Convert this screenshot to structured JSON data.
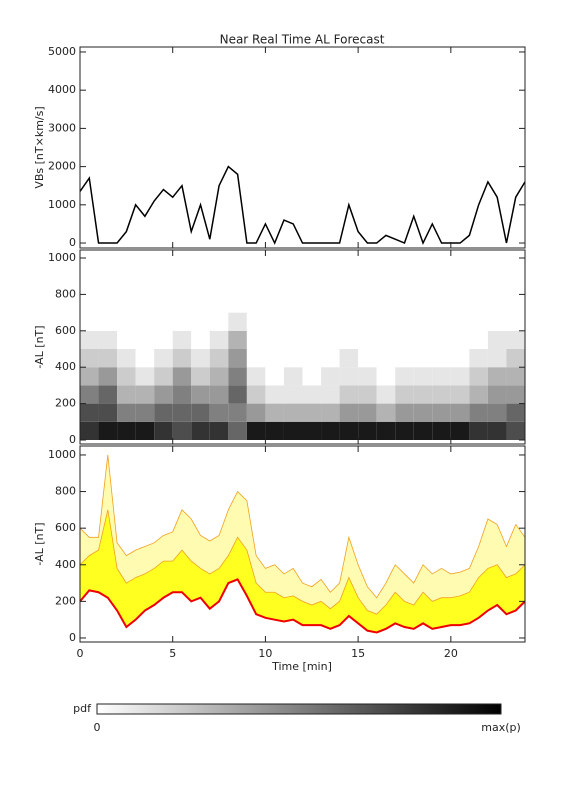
{
  "chart_data": [
    {
      "type": "line",
      "title": "Near Real Time AL Forecast",
      "ylabel": "VBs [nT×km/s]",
      "xlim": [
        0,
        24
      ],
      "ylim": [
        -130,
        5130
      ],
      "yticks": [
        0,
        1000,
        2000,
        3000,
        4000,
        5000
      ],
      "color": "#000000",
      "x": [
        0,
        0.5,
        1,
        1.5,
        2,
        2.5,
        3,
        3.5,
        4,
        4.5,
        5,
        5.5,
        6,
        6.5,
        7,
        7.5,
        8,
        8.5,
        9,
        9.5,
        10,
        10.5,
        11,
        11.5,
        12,
        12.5,
        13,
        13.5,
        14,
        14.5,
        15,
        15.5,
        16,
        16.5,
        17,
        17.5,
        18,
        18.5,
        19,
        19.5,
        20,
        20.5,
        21,
        21.5,
        22,
        22.5,
        23,
        23.5,
        24
      ],
      "values": [
        1350,
        1700,
        0,
        0,
        0,
        300,
        1000,
        700,
        1100,
        1400,
        1200,
        1500,
        300,
        1000,
        100,
        1500,
        2000,
        1800,
        0,
        0,
        500,
        0,
        600,
        500,
        0,
        0,
        0,
        0,
        0,
        1000,
        300,
        0,
        0,
        200,
        100,
        0,
        700,
        0,
        500,
        0,
        0,
        0,
        200,
        1000,
        1600,
        1200,
        0,
        1200,
        1600
      ]
    },
    {
      "type": "heatmap",
      "ylabel": "-AL [nT]",
      "xlim": [
        0,
        24
      ],
      "ylim": [
        -22,
        1044
      ],
      "yticks": [
        0,
        200,
        400,
        600,
        800,
        1000
      ],
      "x_bins": [
        0,
        1,
        2,
        3,
        4,
        5,
        6,
        7,
        8,
        9,
        10,
        11,
        12,
        13,
        14,
        15,
        16,
        17,
        18,
        19,
        20,
        21,
        22,
        23,
        24
      ],
      "y_bins": [
        0,
        100,
        200,
        300,
        400,
        500,
        600,
        700,
        800,
        900,
        1000
      ],
      "z": [
        [
          0.8,
          0.7,
          0.5,
          0.3,
          0.2,
          0.1,
          0,
          0,
          0,
          0
        ],
        [
          0.9,
          0.7,
          0.6,
          0.4,
          0.2,
          0.1,
          0,
          0,
          0,
          0
        ],
        [
          0.9,
          0.5,
          0.3,
          0.2,
          0.1,
          0,
          0,
          0,
          0,
          0
        ],
        [
          0.9,
          0.5,
          0.3,
          0.1,
          0,
          0,
          0,
          0,
          0,
          0
        ],
        [
          0.8,
          0.6,
          0.4,
          0.2,
          0.1,
          0,
          0,
          0,
          0,
          0
        ],
        [
          0.7,
          0.6,
          0.5,
          0.4,
          0.2,
          0.1,
          0,
          0,
          0,
          0
        ],
        [
          0.8,
          0.6,
          0.4,
          0.2,
          0.1,
          0,
          0,
          0,
          0,
          0
        ],
        [
          0.8,
          0.5,
          0.4,
          0.3,
          0.2,
          0.1,
          0,
          0,
          0,
          0
        ],
        [
          0.6,
          0.5,
          0.6,
          0.5,
          0.4,
          0.3,
          0.1,
          0,
          0,
          0
        ],
        [
          0.9,
          0.4,
          0.2,
          0.1,
          0,
          0,
          0,
          0,
          0,
          0
        ],
        [
          0.9,
          0.3,
          0.1,
          0,
          0,
          0,
          0,
          0,
          0,
          0
        ],
        [
          0.9,
          0.3,
          0.1,
          0.1,
          0,
          0,
          0,
          0,
          0,
          0
        ],
        [
          0.9,
          0.3,
          0.1,
          0,
          0,
          0,
          0,
          0,
          0,
          0
        ],
        [
          0.9,
          0.3,
          0.1,
          0.1,
          0,
          0,
          0,
          0,
          0,
          0
        ],
        [
          0.9,
          0.4,
          0.2,
          0.1,
          0.1,
          0,
          0,
          0,
          0,
          0
        ],
        [
          0.9,
          0.4,
          0.2,
          0.1,
          0,
          0,
          0,
          0,
          0,
          0
        ],
        [
          0.9,
          0.3,
          0.1,
          0,
          0,
          0,
          0,
          0,
          0,
          0
        ],
        [
          0.9,
          0.4,
          0.2,
          0.1,
          0,
          0,
          0,
          0,
          0,
          0
        ],
        [
          0.9,
          0.4,
          0.2,
          0.1,
          0,
          0,
          0,
          0,
          0,
          0
        ],
        [
          0.9,
          0.4,
          0.2,
          0.1,
          0,
          0,
          0,
          0,
          0,
          0
        ],
        [
          0.9,
          0.4,
          0.2,
          0.1,
          0,
          0,
          0,
          0,
          0,
          0
        ],
        [
          0.8,
          0.5,
          0.3,
          0.2,
          0.1,
          0,
          0,
          0,
          0,
          0
        ],
        [
          0.8,
          0.5,
          0.4,
          0.3,
          0.1,
          0.1,
          0,
          0,
          0,
          0
        ],
        [
          0.7,
          0.6,
          0.4,
          0.3,
          0.2,
          0.1,
          0,
          0,
          0,
          0
        ]
      ]
    },
    {
      "type": "band",
      "ylabel": "-AL [nT]",
      "xlabel": "Time [min]",
      "xlim": [
        0,
        24
      ],
      "xticks": [
        0,
        5,
        10,
        15,
        20
      ],
      "ylim": [
        -22,
        1049
      ],
      "yticks": [
        0,
        200,
        400,
        600,
        800,
        1000
      ],
      "edge_color": "#f0a020",
      "x": [
        0,
        0.5,
        1,
        1.5,
        2,
        2.5,
        3,
        3.5,
        4,
        4.5,
        5,
        5.5,
        6,
        6.5,
        7,
        7.5,
        8,
        8.5,
        9,
        9.5,
        10,
        10.5,
        11,
        11.5,
        12,
        12.5,
        13,
        13.5,
        14,
        14.5,
        15,
        15.5,
        16,
        16.5,
        17,
        17.5,
        18,
        18.5,
        19,
        19.5,
        20,
        20.5,
        21,
        21.5,
        22,
        22.5,
        23,
        23.5,
        24
      ],
      "series": [
        {
          "color": "#fffbb0",
          "values": [
            600,
            550,
            550,
            1000,
            520,
            450,
            480,
            500,
            520,
            560,
            580,
            700,
            650,
            560,
            530,
            560,
            700,
            800,
            750,
            450,
            380,
            400,
            350,
            380,
            300,
            280,
            320,
            250,
            300,
            550,
            400,
            280,
            220,
            300,
            400,
            350,
            300,
            400,
            350,
            380,
            350,
            360,
            380,
            500,
            650,
            620,
            500,
            620,
            550
          ]
        },
        {
          "color": "#ffff20",
          "values": [
            400,
            450,
            480,
            700,
            380,
            300,
            330,
            350,
            380,
            420,
            420,
            480,
            420,
            380,
            350,
            380,
            450,
            550,
            480,
            300,
            250,
            250,
            220,
            230,
            200,
            180,
            200,
            160,
            200,
            330,
            220,
            150,
            130,
            180,
            250,
            200,
            180,
            250,
            200,
            220,
            220,
            230,
            250,
            330,
            380,
            400,
            330,
            350,
            400
          ]
        },
        {
          "color": "#ee0000",
          "values": [
            200,
            260,
            250,
            220,
            150,
            60,
            100,
            150,
            180,
            220,
            250,
            250,
            200,
            220,
            160,
            200,
            300,
            320,
            230,
            130,
            110,
            100,
            90,
            100,
            70,
            70,
            70,
            50,
            70,
            120,
            80,
            40,
            30,
            50,
            80,
            60,
            50,
            80,
            50,
            60,
            70,
            70,
            80,
            110,
            150,
            180,
            130,
            150,
            200
          ]
        }
      ]
    }
  ],
  "colorbar": {
    "label": "pdf",
    "min_label": "0",
    "max_label": "max(p)"
  }
}
